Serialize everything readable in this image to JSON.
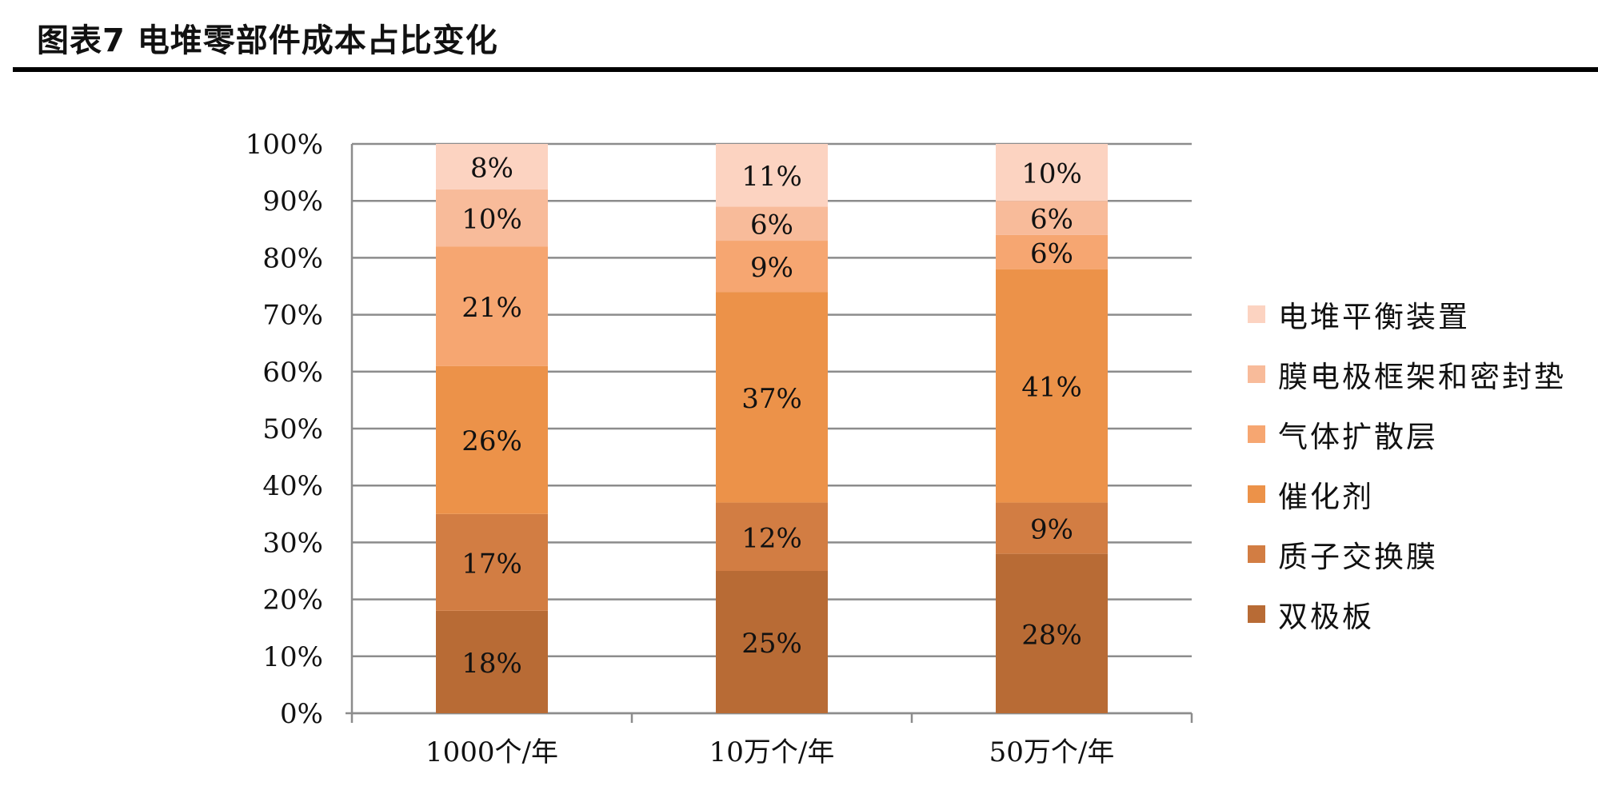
{
  "title": "图表7 电堆零部件成本占比变化",
  "chart_data": {
    "type": "bar",
    "stacked": true,
    "percent_stacked": true,
    "categories": [
      "1000个/年",
      "10万个/年",
      "50万个/年"
    ],
    "y_ticks": [
      "0%",
      "10%",
      "20%",
      "30%",
      "40%",
      "50%",
      "60%",
      "70%",
      "80%",
      "90%",
      "100%"
    ],
    "ylim": [
      0,
      100
    ],
    "grid": true,
    "legend_position": "right",
    "series": [
      {
        "name": "双极板",
        "values": [
          18,
          25,
          28
        ],
        "labels": [
          "18%",
          "25%",
          "28%"
        ],
        "color": "#b86b35"
      },
      {
        "name": "质子交换膜",
        "values": [
          17,
          12,
          9
        ],
        "labels": [
          "17%",
          "12%",
          "9%"
        ],
        "color": "#d27d43"
      },
      {
        "name": "催化剂",
        "values": [
          26,
          37,
          41
        ],
        "labels": [
          "26%",
          "37%",
          "41%"
        ],
        "color": "#ec9249"
      },
      {
        "name": "气体扩散层",
        "values": [
          21,
          9,
          6
        ],
        "labels": [
          "21%",
          "9%",
          "6%"
        ],
        "color": "#f6a671"
      },
      {
        "name": "膜电极框架和密封垫",
        "values": [
          10,
          6,
          6
        ],
        "labels": [
          "10%",
          "6%",
          "6%"
        ],
        "color": "#f8bb9a"
      },
      {
        "name": "电堆平衡装置",
        "values": [
          8,
          11,
          10
        ],
        "labels": [
          "8%",
          "11%",
          "10%"
        ],
        "color": "#fcd3c1"
      }
    ]
  }
}
